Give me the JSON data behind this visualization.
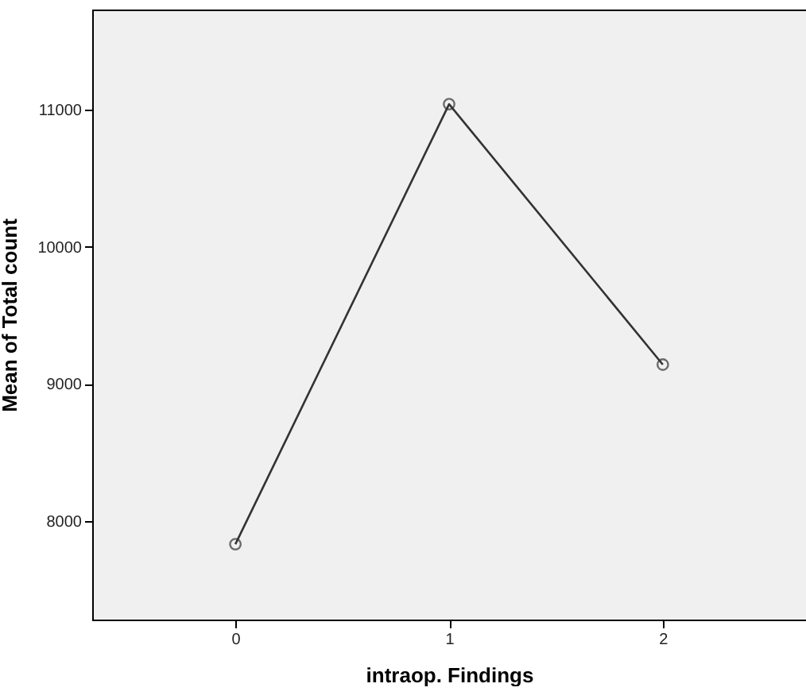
{
  "chart_data": {
    "type": "line",
    "xlabel": "intraop. Findings",
    "ylabel": "Mean of Total count",
    "x": [
      0,
      1,
      2
    ],
    "series": [
      {
        "color": "#333333",
        "values": [
          7830,
          11040,
          9140
        ]
      }
    ],
    "xlim": [
      -0.67,
      2.67
    ],
    "xticks": [
      0,
      1,
      2
    ],
    "ylim": [
      7280,
      11730
    ],
    "yticks": [
      8000,
      9000,
      10000,
      11000
    ],
    "marker": "circle",
    "line_style": "solid"
  }
}
